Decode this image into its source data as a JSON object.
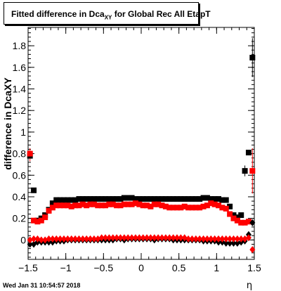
{
  "title": {
    "main": "Fitted difference in Dca",
    "subscript": "XY",
    "rest": " for Global Rec All EtapT"
  },
  "timestamp": "Wed Jan 31 10:54:57 2018",
  "chart_data": {
    "type": "scatter",
    "title": "Fitted difference in DcaXY for Global Rec All EtapT",
    "xlabel": "η",
    "ylabel": "difference in DcaXY",
    "xlim": [
      -1.5,
      1.5
    ],
    "ylim": [
      -0.18,
      1.97
    ],
    "x_ticks": [
      -1.5,
      -1,
      -0.5,
      0,
      0.5,
      1,
      1.5
    ],
    "x_tick_labels": [
      "−1.5",
      "−1",
      "−0.5",
      "0",
      "0.5",
      "1",
      "1.5"
    ],
    "y_ticks": [
      0,
      0.2,
      0.4,
      0.6,
      0.8,
      1,
      1.2,
      1.4,
      1.6,
      1.8
    ],
    "y_tick_labels": [
      "0",
      "0.2",
      "0.4",
      "0.6",
      "0.8",
      "1",
      "1.2",
      "1.4",
      "1.6",
      "1.8"
    ],
    "grid": false,
    "colors": {
      "black": "#000000",
      "red": "#ff0000"
    },
    "series": [
      {
        "color": "#000000",
        "marker": "square",
        "x": [
          -1.475,
          -1.425,
          -1.375,
          -1.325,
          -1.275,
          -1.225,
          -1.175,
          -1.125,
          -1.075,
          -1.025,
          -0.975,
          -0.925,
          -0.875,
          -0.825,
          -0.775,
          -0.725,
          -0.675,
          -0.625,
          -0.575,
          -0.525,
          -0.475,
          -0.425,
          -0.375,
          -0.325,
          -0.275,
          -0.225,
          -0.175,
          -0.125,
          -0.075,
          -0.025,
          0.025,
          0.075,
          0.125,
          0.175,
          0.225,
          0.275,
          0.325,
          0.375,
          0.425,
          0.475,
          0.525,
          0.575,
          0.625,
          0.675,
          0.725,
          0.775,
          0.825,
          0.875,
          0.925,
          0.975,
          1.025,
          1.075,
          1.125,
          1.175,
          1.225,
          1.275,
          1.325,
          1.375,
          1.425,
          1.475
        ],
        "y": [
          0.78,
          0.46,
          0.18,
          0.2,
          0.23,
          0.28,
          0.34,
          0.37,
          0.37,
          0.37,
          0.37,
          0.37,
          0.37,
          0.38,
          0.38,
          0.38,
          0.38,
          0.38,
          0.38,
          0.38,
          0.38,
          0.38,
          0.38,
          0.38,
          0.38,
          0.39,
          0.39,
          0.39,
          0.38,
          0.38,
          0.38,
          0.38,
          0.38,
          0.38,
          0.38,
          0.38,
          0.38,
          0.38,
          0.38,
          0.38,
          0.38,
          0.38,
          0.38,
          0.38,
          0.38,
          0.38,
          0.39,
          0.39,
          0.38,
          0.38,
          0.38,
          0.37,
          0.37,
          0.31,
          0.23,
          0.21,
          0.23,
          0.64,
          0.81,
          1.69
        ]
      },
      {
        "color": "#ff0000",
        "marker": "square",
        "x": [
          -1.475,
          -1.425,
          -1.375,
          -1.325,
          -1.275,
          -1.225,
          -1.175,
          -1.125,
          -1.075,
          -1.025,
          -0.975,
          -0.925,
          -0.875,
          -0.825,
          -0.775,
          -0.725,
          -0.675,
          -0.625,
          -0.575,
          -0.525,
          -0.475,
          -0.425,
          -0.375,
          -0.325,
          -0.275,
          -0.225,
          -0.175,
          -0.125,
          -0.075,
          -0.025,
          0.025,
          0.075,
          0.125,
          0.175,
          0.225,
          0.275,
          0.325,
          0.375,
          0.425,
          0.475,
          0.525,
          0.575,
          0.625,
          0.675,
          0.725,
          0.775,
          0.825,
          0.875,
          0.925,
          0.975,
          1.025,
          1.075,
          1.125,
          1.175,
          1.225,
          1.275,
          1.325,
          1.375,
          1.425,
          1.475
        ],
        "y": [
          0.8,
          0.18,
          0.17,
          0.18,
          0.21,
          0.27,
          0.3,
          0.32,
          0.32,
          0.32,
          0.32,
          0.31,
          0.32,
          0.32,
          0.33,
          0.32,
          0.33,
          0.33,
          0.32,
          0.32,
          0.32,
          0.33,
          0.33,
          0.32,
          0.32,
          0.33,
          0.33,
          0.33,
          0.34,
          0.33,
          0.32,
          0.32,
          0.31,
          0.33,
          0.33,
          0.32,
          0.31,
          0.3,
          0.3,
          0.3,
          0.3,
          0.31,
          0.3,
          0.3,
          0.3,
          0.3,
          0.31,
          0.32,
          0.34,
          0.33,
          0.32,
          0.3,
          0.29,
          0.24,
          0.2,
          0.18,
          0.16,
          0.16,
          0.17,
          0.64
        ]
      },
      {
        "color": "#000000",
        "marker": "diamond",
        "x": [
          -1.475,
          -1.425,
          -1.375,
          -1.325,
          -1.275,
          -1.225,
          -1.175,
          -1.125,
          -1.075,
          -1.025,
          -0.975,
          -0.925,
          -0.875,
          -0.825,
          -0.775,
          -0.725,
          -0.675,
          -0.625,
          -0.575,
          -0.525,
          -0.475,
          -0.425,
          -0.375,
          -0.325,
          -0.275,
          -0.225,
          -0.175,
          -0.125,
          -0.075,
          -0.025,
          0.025,
          0.075,
          0.125,
          0.175,
          0.225,
          0.275,
          0.325,
          0.375,
          0.425,
          0.475,
          0.525,
          0.575,
          0.625,
          0.675,
          0.725,
          0.775,
          0.825,
          0.875,
          0.925,
          0.975,
          1.025,
          1.075,
          1.125,
          1.175,
          1.225,
          1.275,
          1.325,
          1.375,
          1.425,
          1.475
        ],
        "y": [
          -0.04,
          -0.04,
          -0.02,
          -0.02,
          -0.02,
          -0.02,
          -0.02,
          -0.01,
          -0.01,
          -0.01,
          0.0,
          0.0,
          0.0,
          0.0,
          0.0,
          0.0,
          0.0,
          0.0,
          0.0,
          0.0,
          0.0,
          0.0,
          0.0,
          0.01,
          0.01,
          0.0,
          0.01,
          0.01,
          0.01,
          0.01,
          0.01,
          0.01,
          0.01,
          0.0,
          0.01,
          0.01,
          0.01,
          0.01,
          0.0,
          0.0,
          0.0,
          0.0,
          0.0,
          0.0,
          0.0,
          0.0,
          -0.01,
          -0.01,
          -0.01,
          -0.01,
          -0.02,
          -0.02,
          -0.03,
          -0.03,
          -0.03,
          -0.03,
          -0.02,
          -0.01,
          0.05,
          0.16
        ]
      },
      {
        "color": "#ff0000",
        "marker": "diamond",
        "x": [
          -1.475,
          -1.425,
          -1.375,
          -1.325,
          -1.275,
          -1.225,
          -1.175,
          -1.125,
          -1.075,
          -1.025,
          -0.975,
          -0.925,
          -0.875,
          -0.825,
          -0.775,
          -0.725,
          -0.675,
          -0.625,
          -0.575,
          -0.525,
          -0.475,
          -0.425,
          -0.375,
          -0.325,
          -0.275,
          -0.225,
          -0.175,
          -0.125,
          -0.075,
          -0.025,
          0.025,
          0.075,
          0.125,
          0.175,
          0.225,
          0.275,
          0.325,
          0.375,
          0.425,
          0.475,
          0.525,
          0.575,
          0.625,
          0.675,
          0.725,
          0.775,
          0.825,
          0.875,
          0.925,
          0.975,
          1.025,
          1.075,
          1.125,
          1.175,
          1.225,
          1.275,
          1.325,
          1.375,
          1.425,
          1.475
        ],
        "y": [
          0.0,
          0.01,
          0.01,
          0.0,
          0.0,
          0.01,
          0.01,
          0.01,
          0.01,
          0.01,
          0.01,
          0.01,
          0.01,
          0.01,
          0.01,
          0.01,
          0.01,
          0.01,
          0.01,
          0.02,
          0.02,
          0.02,
          0.02,
          0.02,
          0.02,
          0.02,
          0.02,
          0.02,
          0.02,
          0.02,
          0.02,
          0.02,
          0.02,
          0.02,
          0.02,
          0.02,
          0.02,
          0.02,
          0.02,
          0.02,
          0.02,
          0.02,
          0.01,
          0.01,
          0.01,
          0.01,
          0.01,
          0.01,
          0.01,
          0.01,
          0.01,
          0.01,
          0.01,
          0.01,
          0.01,
          0.01,
          0.01,
          0.01,
          0.02,
          -0.09
        ]
      }
    ],
    "error_bars": [
      {
        "x": -1.475,
        "y": 0.79,
        "err": 0.06,
        "color": "#ff0000"
      },
      {
        "x": 1.375,
        "y": 0.64,
        "err": 0.05,
        "color": "#000000"
      },
      {
        "x": 1.475,
        "y": 0.64,
        "err": 0.21,
        "color": "#ff0000"
      },
      {
        "x": 1.475,
        "y": 1.69,
        "err": 0.18,
        "color": "#000000"
      }
    ]
  }
}
